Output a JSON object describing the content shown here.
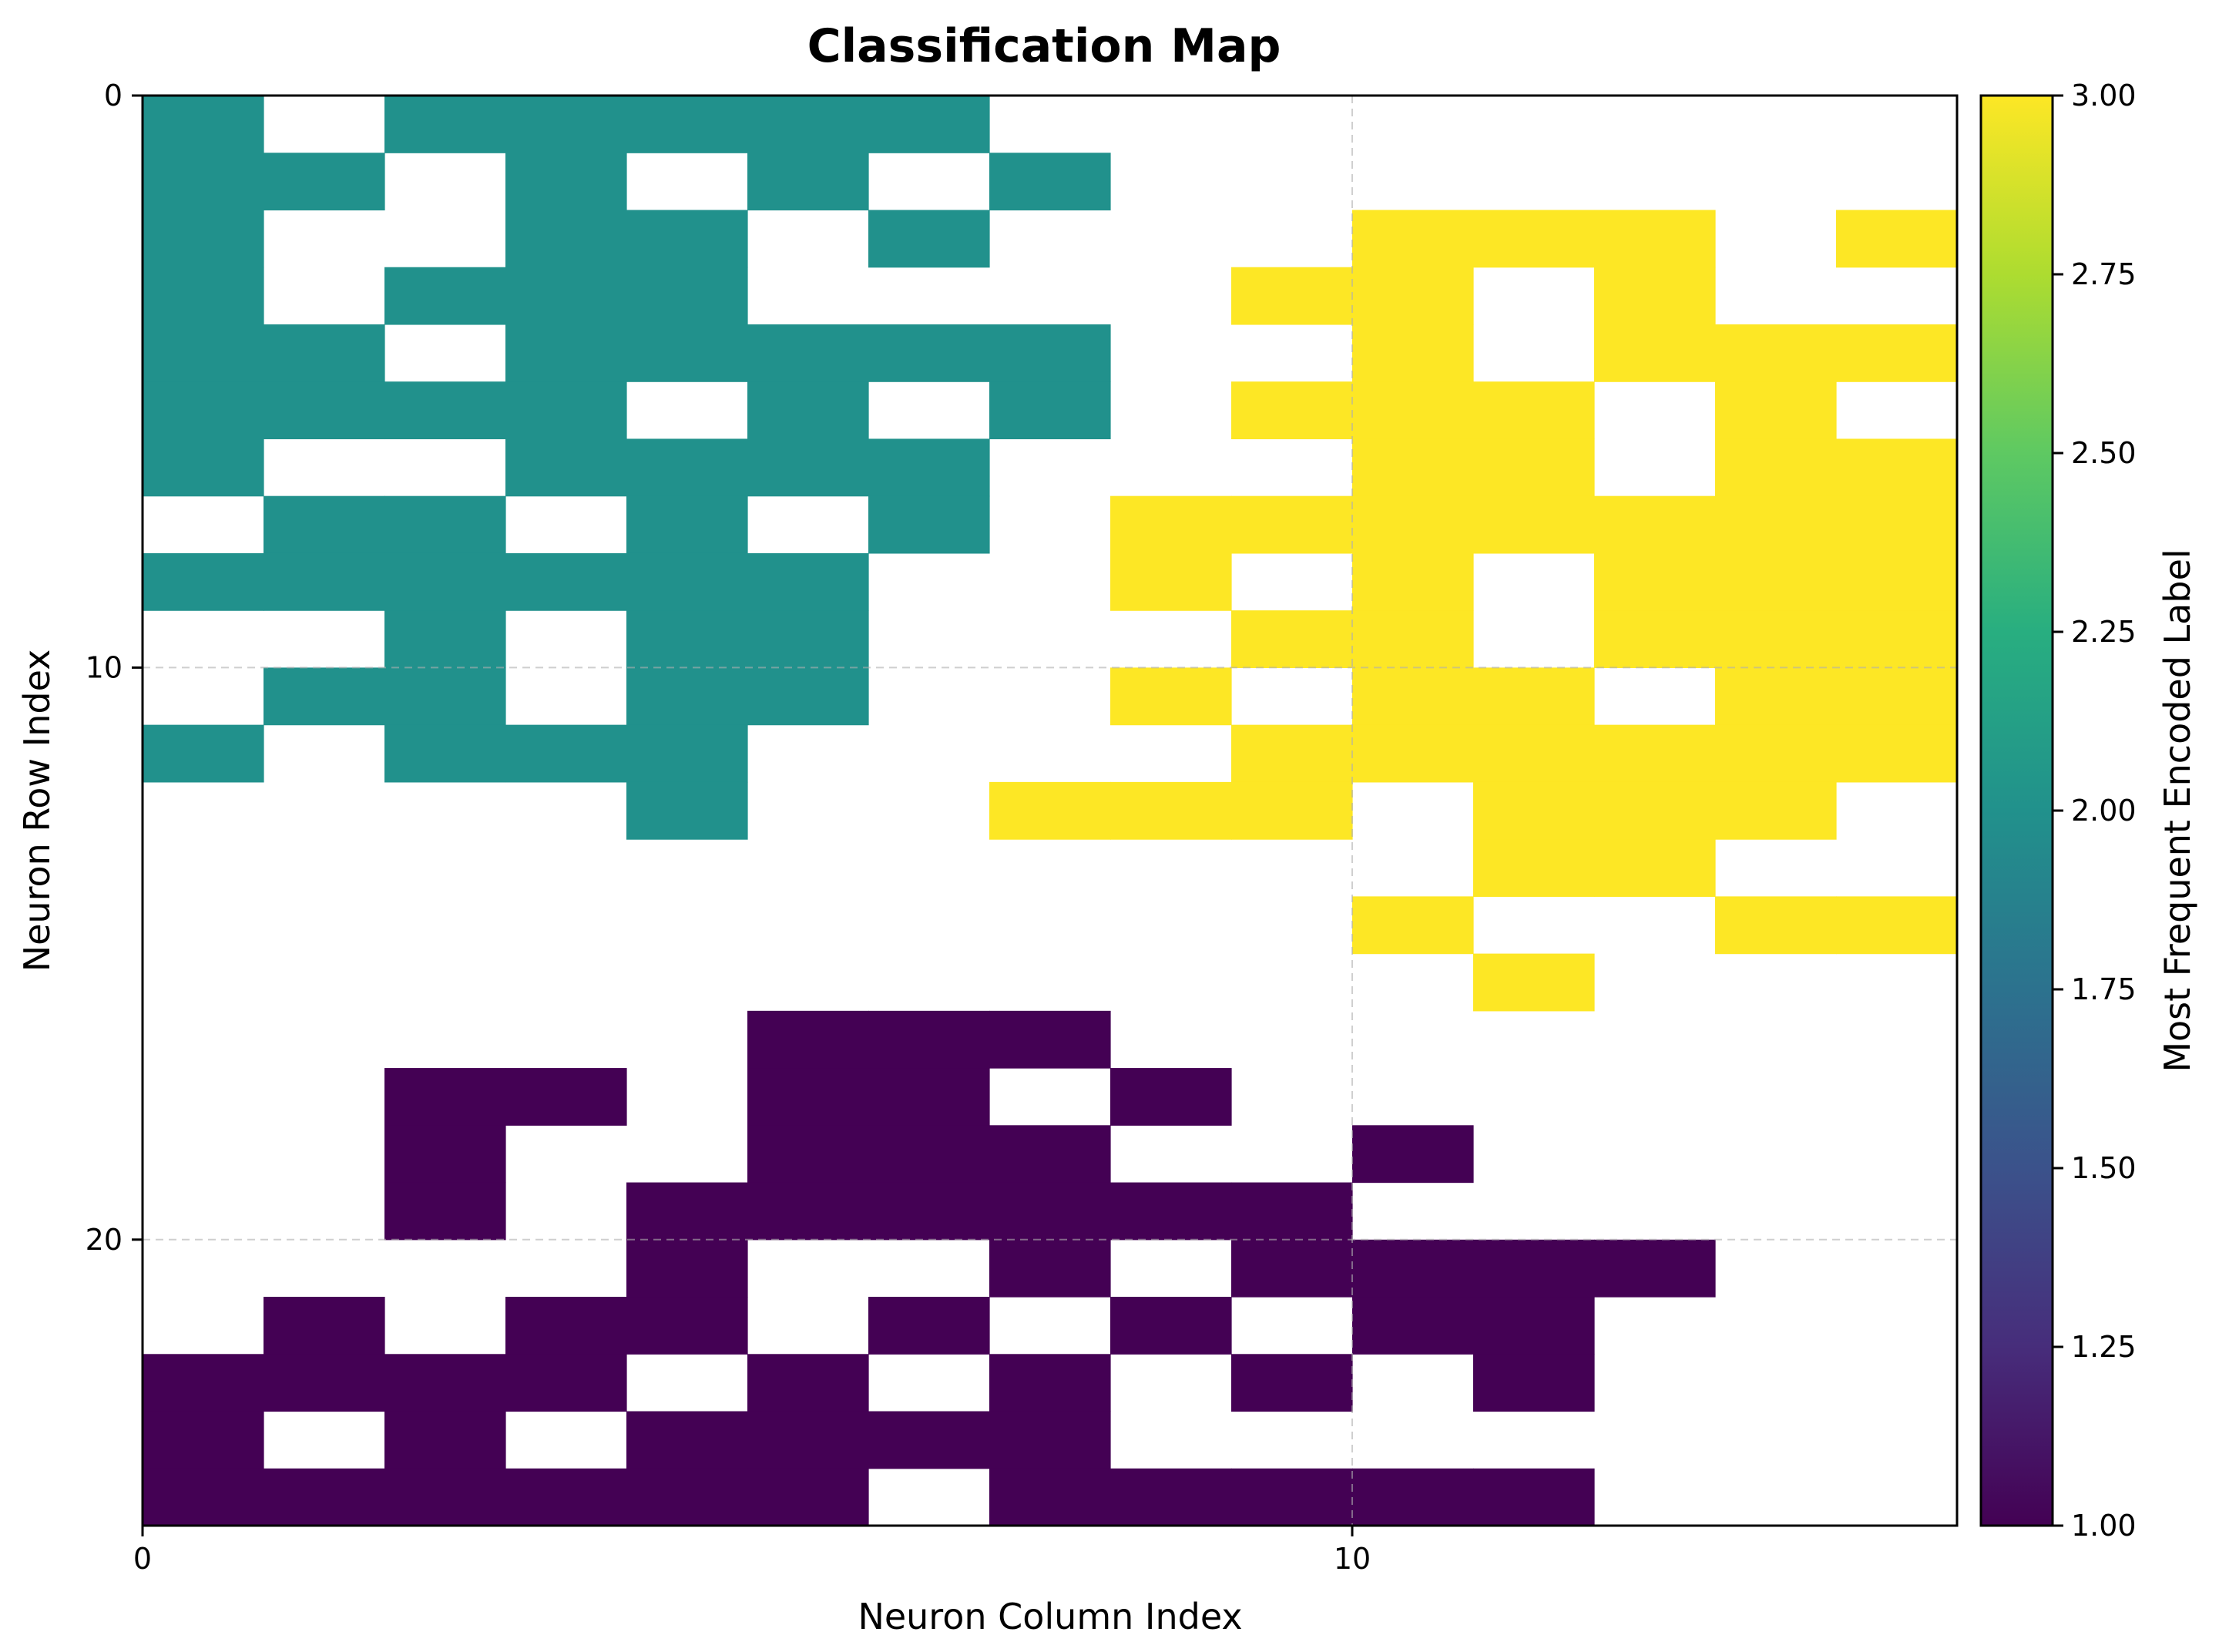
{
  "chart_data": {
    "type": "heatmap",
    "title": "Classification Map",
    "xlabel": "Neuron Column Index",
    "ylabel": "Neuron Row Index",
    "colorbar_label": "Most Frequent Encoded Label",
    "colormap": "viridis",
    "empty_cell_color": "#ffffff",
    "grid": true,
    "n_rows": 25,
    "n_cols": 15,
    "xlim": [
      0,
      15
    ],
    "ylim": [
      0,
      25
    ],
    "x_ticks": [
      "0",
      "10"
    ],
    "y_ticks": [
      "0",
      "10",
      "20"
    ],
    "clim": [
      1.0,
      3.0
    ],
    "colorbar_ticks": [
      "1.00",
      "1.25",
      "1.50",
      "1.75",
      "2.00",
      "2.25",
      "2.50",
      "2.75",
      "3.00"
    ],
    "colors": {
      "label_1": "#440154",
      "label_2": "#21918c",
      "label_3": "#fde725"
    },
    "cells": [
      [
        2,
        0,
        2,
        2,
        2,
        2,
        2,
        0,
        0,
        0,
        0,
        0,
        0,
        0,
        0
      ],
      [
        2,
        2,
        0,
        2,
        0,
        2,
        0,
        2,
        0,
        0,
        0,
        0,
        0,
        0,
        0
      ],
      [
        2,
        0,
        0,
        2,
        2,
        0,
        2,
        0,
        0,
        0,
        3,
        3,
        3,
        0,
        3
      ],
      [
        2,
        0,
        2,
        2,
        2,
        0,
        0,
        0,
        0,
        3,
        3,
        0,
        3,
        0,
        0
      ],
      [
        2,
        2,
        0,
        2,
        2,
        2,
        2,
        2,
        0,
        0,
        3,
        0,
        3,
        3,
        3
      ],
      [
        2,
        2,
        2,
        2,
        0,
        2,
        0,
        2,
        0,
        3,
        3,
        3,
        0,
        3,
        0
      ],
      [
        2,
        0,
        0,
        2,
        2,
        2,
        2,
        0,
        0,
        0,
        3,
        3,
        0,
        3,
        3
      ],
      [
        0,
        2,
        2,
        0,
        2,
        0,
        2,
        0,
        3,
        3,
        3,
        3,
        3,
        3,
        3
      ],
      [
        2,
        2,
        2,
        2,
        2,
        2,
        0,
        0,
        3,
        0,
        3,
        0,
        3,
        3,
        3
      ],
      [
        0,
        0,
        2,
        0,
        2,
        2,
        0,
        0,
        0,
        3,
        3,
        0,
        3,
        3,
        3
      ],
      [
        0,
        2,
        2,
        0,
        2,
        2,
        0,
        0,
        3,
        0,
        3,
        3,
        0,
        3,
        3
      ],
      [
        2,
        0,
        2,
        2,
        2,
        0,
        0,
        0,
        0,
        3,
        3,
        3,
        3,
        3,
        3
      ],
      [
        0,
        0,
        0,
        0,
        2,
        0,
        0,
        3,
        3,
        3,
        0,
        3,
        3,
        3,
        0
      ],
      [
        0,
        0,
        0,
        0,
        0,
        0,
        0,
        0,
        0,
        0,
        0,
        3,
        3,
        0,
        0
      ],
      [
        0,
        0,
        0,
        0,
        0,
        0,
        0,
        0,
        0,
        0,
        3,
        0,
        0,
        3,
        3
      ],
      [
        0,
        0,
        0,
        0,
        0,
        0,
        0,
        0,
        0,
        0,
        0,
        3,
        0,
        0,
        0
      ],
      [
        0,
        0,
        0,
        0,
        0,
        1,
        1,
        1,
        0,
        0,
        0,
        0,
        0,
        0,
        0
      ],
      [
        0,
        0,
        1,
        1,
        0,
        1,
        1,
        0,
        1,
        0,
        0,
        0,
        0,
        0,
        0
      ],
      [
        0,
        0,
        1,
        0,
        0,
        1,
        1,
        1,
        0,
        0,
        1,
        0,
        0,
        0,
        0
      ],
      [
        0,
        0,
        1,
        0,
        1,
        1,
        1,
        1,
        1,
        1,
        0,
        0,
        0,
        0,
        0
      ],
      [
        0,
        0,
        0,
        0,
        1,
        0,
        0,
        1,
        0,
        1,
        1,
        1,
        1,
        0,
        0
      ],
      [
        0,
        1,
        0,
        1,
        1,
        0,
        1,
        0,
        1,
        0,
        1,
        1,
        0,
        0,
        0
      ],
      [
        1,
        1,
        1,
        1,
        0,
        1,
        0,
        1,
        0,
        1,
        0,
        1,
        0,
        0,
        0
      ],
      [
        1,
        0,
        1,
        0,
        1,
        1,
        1,
        1,
        0,
        0,
        0,
        0,
        0,
        0,
        0
      ],
      [
        1,
        1,
        1,
        1,
        1,
        1,
        0,
        1,
        1,
        1,
        1,
        1,
        0,
        0,
        0
      ]
    ]
  }
}
